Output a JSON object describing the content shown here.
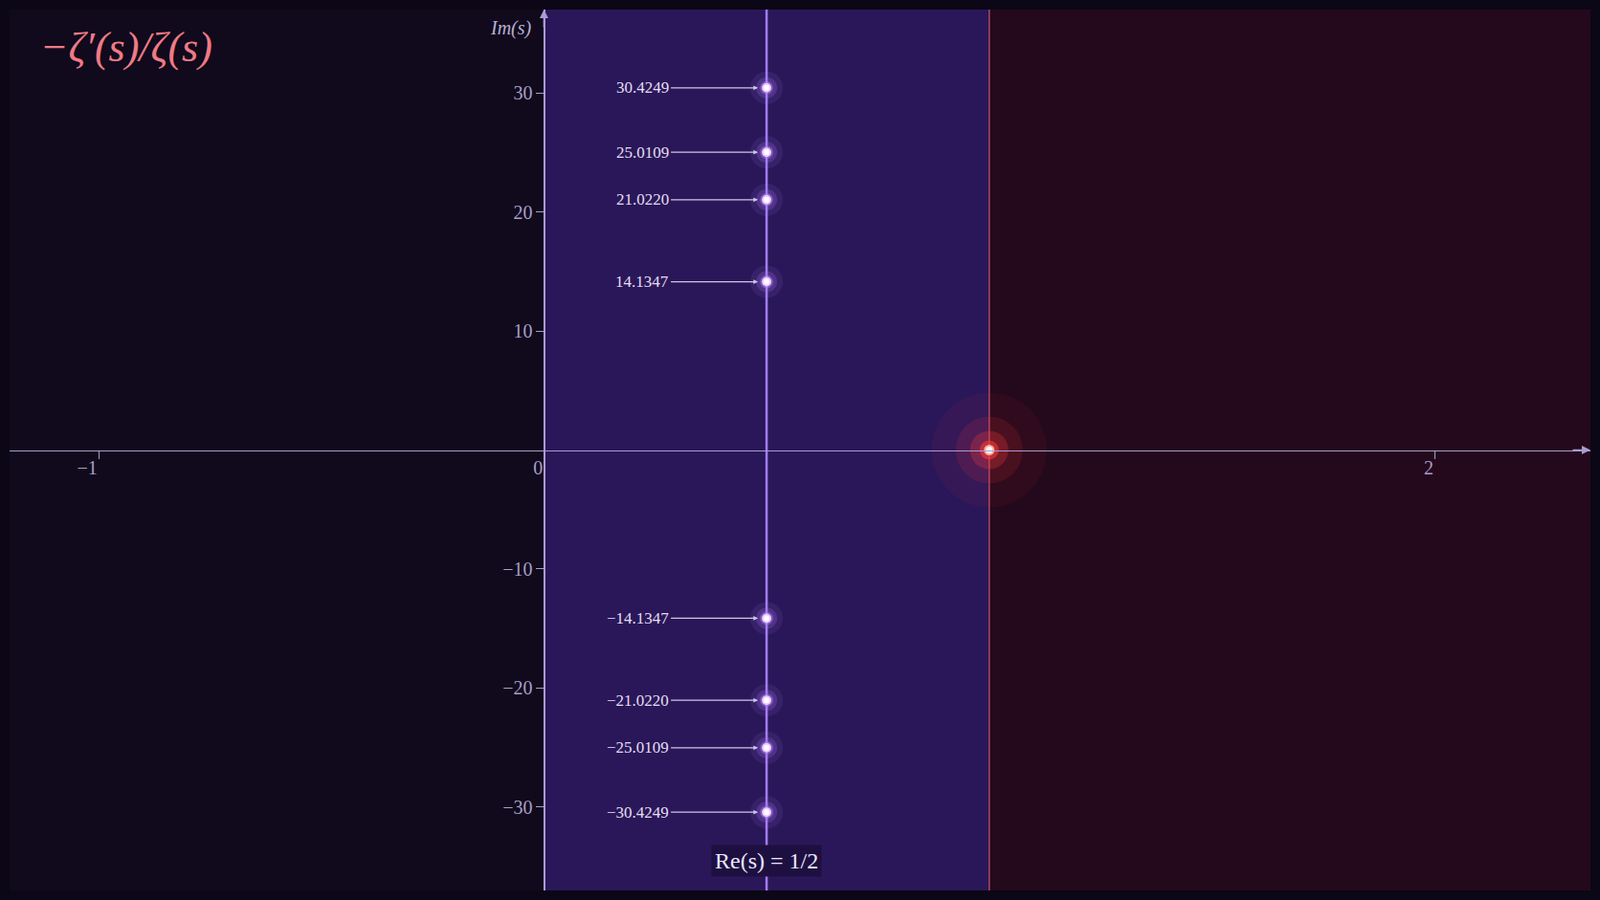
{
  "chart_data": {
    "type": "scatter",
    "title": "−ζ′(s)/ζ(s)",
    "y_label": "Im(s)",
    "line_label": "Re(s) = 1/2",
    "xlim": [
      -1.2,
      2.35
    ],
    "ylim": [
      -37,
      37
    ],
    "xticks": [
      -1,
      0,
      2
    ],
    "yticks": [
      -30,
      -20,
      -10,
      10,
      20,
      30
    ],
    "grid": false,
    "critical_strip": [
      0,
      1
    ],
    "critical_line": 0.5,
    "pole": {
      "x": 1,
      "y": 0,
      "color": "#ff3a3a"
    },
    "zeros": {
      "color": "#b07cff",
      "x": 0.5,
      "y": [
        {
          "value": 30.4249,
          "label": "30.4249"
        },
        {
          "value": 25.0109,
          "label": "25.0109"
        },
        {
          "value": 21.022,
          "label": "21.0220"
        },
        {
          "value": 14.1347,
          "label": "14.1347"
        },
        {
          "value": -14.1347,
          "label": "−14.1347"
        },
        {
          "value": -21.022,
          "label": "−21.0220"
        },
        {
          "value": -25.0109,
          "label": "−25.0109"
        },
        {
          "value": -30.4249,
          "label": "−30.4249"
        }
      ]
    }
  }
}
